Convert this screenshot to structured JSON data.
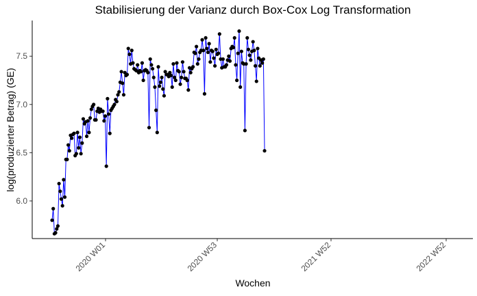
{
  "chart_data": {
    "type": "line",
    "title": "Stabilisierung der Varianz durch Box-Cox Log Transformation",
    "xlabel": "Wochen",
    "ylabel": "log(produzierter Betrag) (GE)",
    "x_tick_labels": [
      "2020 W01",
      "2020 W53",
      "2021 W52",
      "2022 W52"
    ],
    "y_tick_labels": [
      "6.0",
      "6.5",
      "7.0",
      "7.5"
    ],
    "y_ticks": [
      6.0,
      6.5,
      7.0,
      7.5
    ],
    "ylim": [
      5.61,
      7.87
    ],
    "grid": false,
    "line_color": "#0000ff",
    "point_color": "#000000",
    "series": [
      {
        "x_start": "2020 W01",
        "x_unit": "week",
        "values": [
          5.8,
          5.92,
          5.66,
          5.67,
          5.71,
          5.74,
          6.18,
          6.1,
          6.02,
          5.95,
          6.22,
          6.04,
          6.43,
          6.43,
          6.58,
          6.52,
          6.68,
          6.65,
          6.69,
          6.7,
          6.47,
          6.49,
          6.71,
          6.55,
          6.66,
          6.49,
          6.6,
          6.85,
          6.8,
          6.82,
          6.67,
          6.83,
          6.71,
          6.86,
          6.95,
          6.98,
          7.0,
          6.84,
          6.84,
          6.93,
          6.96,
          6.92,
          6.95,
          6.93,
          6.93,
          6.83,
          6.88,
          6.36,
          7.06,
          6.9,
          6.7,
          6.94,
          6.96,
          6.98,
          7.0,
          7.05,
          7.03,
          7.1,
          7.13,
          7.23,
          7.34,
          7.22,
          7.1,
          7.33,
          7.3,
          7.31,
          7.58,
          7.52,
          7.42,
          7.56,
          7.43,
          7.37,
          7.36,
          7.35,
          7.41,
          7.33,
          7.35,
          7.34,
          7.43,
          7.25,
          7.35,
          7.36,
          7.35,
          7.33,
          6.76,
          7.47,
          7.41,
          7.37,
          7.28,
          7.18,
          6.94,
          6.71,
          7.39,
          7.19,
          7.23,
          7.28,
          7.16,
          7.09,
          7.34,
          7.31,
          7.31,
          7.29,
          7.33,
          7.3,
          7.18,
          7.42,
          7.28,
          7.25,
          7.43,
          7.35,
          7.34,
          7.21,
          7.28,
          7.44,
          7.34,
          7.27,
          7.27,
          7.25,
          7.15,
          7.38,
          7.33,
          7.37,
          7.39,
          7.54,
          7.53,
          7.6,
          7.42,
          7.47,
          7.54,
          7.56,
          7.67,
          7.56,
          7.11,
          7.69,
          7.58,
          7.54,
          7.63,
          7.44,
          7.56,
          7.55,
          7.48,
          7.4,
          7.57,
          7.52,
          7.53,
          7.73,
          7.47,
          7.38,
          7.47,
          7.39,
          7.39,
          7.41,
          7.46,
          7.5,
          7.45,
          7.58,
          7.6,
          7.59,
          7.69,
          7.41,
          7.25,
          7.53,
          7.76,
          7.18,
          7.55,
          7.43,
          7.42,
          6.73,
          7.42,
          7.69,
          7.57,
          7.51,
          7.46,
          7.55,
          7.65,
          7.56,
          7.4,
          7.24,
          7.58,
          7.48,
          7.4,
          7.46,
          7.43,
          7.47,
          6.52
        ]
      }
    ]
  }
}
